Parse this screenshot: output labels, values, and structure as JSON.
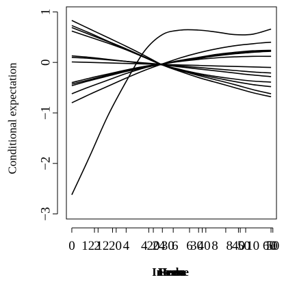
{
  "chart_data": {
    "type": "line",
    "title": "",
    "ylabel": "Conditional expectation",
    "xlabel_overprint": [
      "Prev",
      "Hedu",
      "Income",
      "Lessa"
    ],
    "ylim": [
      -3.1,
      1.1
    ],
    "yticks": [
      -3,
      -2,
      -1,
      0,
      1
    ],
    "ytick_labels": [
      "−3",
      "−2",
      "−1",
      "0",
      "1"
    ],
    "x_tick_label_overprint": [
      {
        "value": 0,
        "label": "0"
      },
      {
        "value": 0.9,
        "label": "12"
      },
      {
        "value": 1.4,
        "label": "2"
      },
      {
        "value": 1.7,
        "label": "12"
      },
      {
        "value": 2.4,
        "label": "20"
      },
      {
        "value": 3.0,
        "label": "4"
      },
      {
        "value": 4.0,
        "label": "4"
      },
      {
        "value": 4.5,
        "label": "20"
      },
      {
        "value": 4.8,
        "label": "24"
      },
      {
        "value": 5.3,
        "label": "30"
      },
      {
        "value": 5.7,
        "label": "6"
      },
      {
        "value": 6.5,
        "label": "6"
      },
      {
        "value": 6.9,
        "label": "30"
      },
      {
        "value": 7.3,
        "label": "40"
      },
      {
        "value": 7.9,
        "label": "8"
      },
      {
        "value": 8.7,
        "label": "8"
      },
      {
        "value": 9.2,
        "label": "40"
      },
      {
        "value": 9.5,
        "label": "50"
      },
      {
        "value": 10.0,
        "label": "10"
      },
      {
        "value": 10.9,
        "label": "60"
      },
      {
        "value": 11.0,
        "label": "10"
      },
      {
        "value": 11.1,
        "label": "50"
      }
    ],
    "x_tick_marks": [
      0,
      1.25,
      1.45,
      2.25,
      2.45,
      3.0,
      4.25,
      4.5,
      5.0,
      5.6,
      6.5,
      7.0,
      7.2,
      7.4,
      8.5,
      9.2,
      9.3,
      9.6,
      11.0,
      11.1
    ],
    "xlim": [
      -0.3,
      11.3
    ],
    "x": [
      0,
      1,
      2,
      3,
      4,
      5,
      6,
      7,
      8,
      9,
      10,
      11
    ],
    "series": [
      {
        "values": [
          -2.62,
          -1.85,
          -1.05,
          -0.38,
          0.22,
          0.55,
          0.64,
          0.64,
          0.6,
          0.55,
          0.56,
          0.66
        ]
      },
      {
        "values": [
          0.83,
          0.66,
          0.49,
          0.32,
          0.14,
          -0.05,
          -0.18,
          -0.3,
          -0.4,
          -0.5,
          -0.6,
          -0.68
        ]
      },
      {
        "values": [
          0.73,
          0.58,
          0.42,
          0.27,
          0.11,
          -0.05,
          -0.16,
          -0.26,
          -0.35,
          -0.44,
          -0.54,
          -0.62
        ]
      },
      {
        "values": [
          0.69,
          0.55,
          0.41,
          0.26,
          0.1,
          -0.05,
          -0.15,
          -0.24,
          -0.31,
          -0.38,
          -0.44,
          -0.48
        ]
      },
      {
        "values": [
          0.62,
          0.5,
          0.38,
          0.25,
          0.1,
          -0.05,
          -0.14,
          -0.22,
          -0.28,
          -0.33,
          -0.37,
          -0.39
        ]
      },
      {
        "values": [
          0.13,
          0.1,
          0.06,
          0.02,
          -0.02,
          -0.05,
          -0.09,
          -0.13,
          -0.17,
          -0.21,
          -0.25,
          -0.28
        ]
      },
      {
        "values": [
          0.1,
          0.08,
          0.05,
          0.02,
          -0.01,
          -0.04,
          -0.07,
          -0.1,
          -0.13,
          -0.16,
          -0.19,
          -0.21
        ]
      },
      {
        "values": [
          0.01,
          0.0,
          -0.01,
          -0.02,
          -0.03,
          -0.04,
          -0.05,
          -0.06,
          -0.07,
          -0.08,
          -0.09,
          -0.1
        ]
      },
      {
        "values": [
          -0.4,
          -0.31,
          -0.23,
          -0.15,
          -0.08,
          -0.03,
          0.02,
          0.06,
          0.09,
          0.11,
          0.12,
          0.12
        ]
      },
      {
        "values": [
          -0.43,
          -0.34,
          -0.25,
          -0.16,
          -0.09,
          -0.03,
          0.03,
          0.08,
          0.13,
          0.17,
          0.2,
          0.22
        ]
      },
      {
        "values": [
          -0.46,
          -0.36,
          -0.27,
          -0.18,
          -0.1,
          -0.03,
          0.03,
          0.09,
          0.14,
          0.18,
          0.21,
          0.23
        ]
      },
      {
        "values": [
          -0.62,
          -0.48,
          -0.35,
          -0.22,
          -0.11,
          -0.03,
          0.04,
          0.1,
          0.16,
          0.2,
          0.23,
          0.24
        ]
      },
      {
        "values": [
          -0.8,
          -0.63,
          -0.47,
          -0.31,
          -0.16,
          -0.03,
          0.09,
          0.19,
          0.27,
          0.33,
          0.37,
          0.4
        ]
      }
    ],
    "grid": false,
    "legend": "none"
  }
}
